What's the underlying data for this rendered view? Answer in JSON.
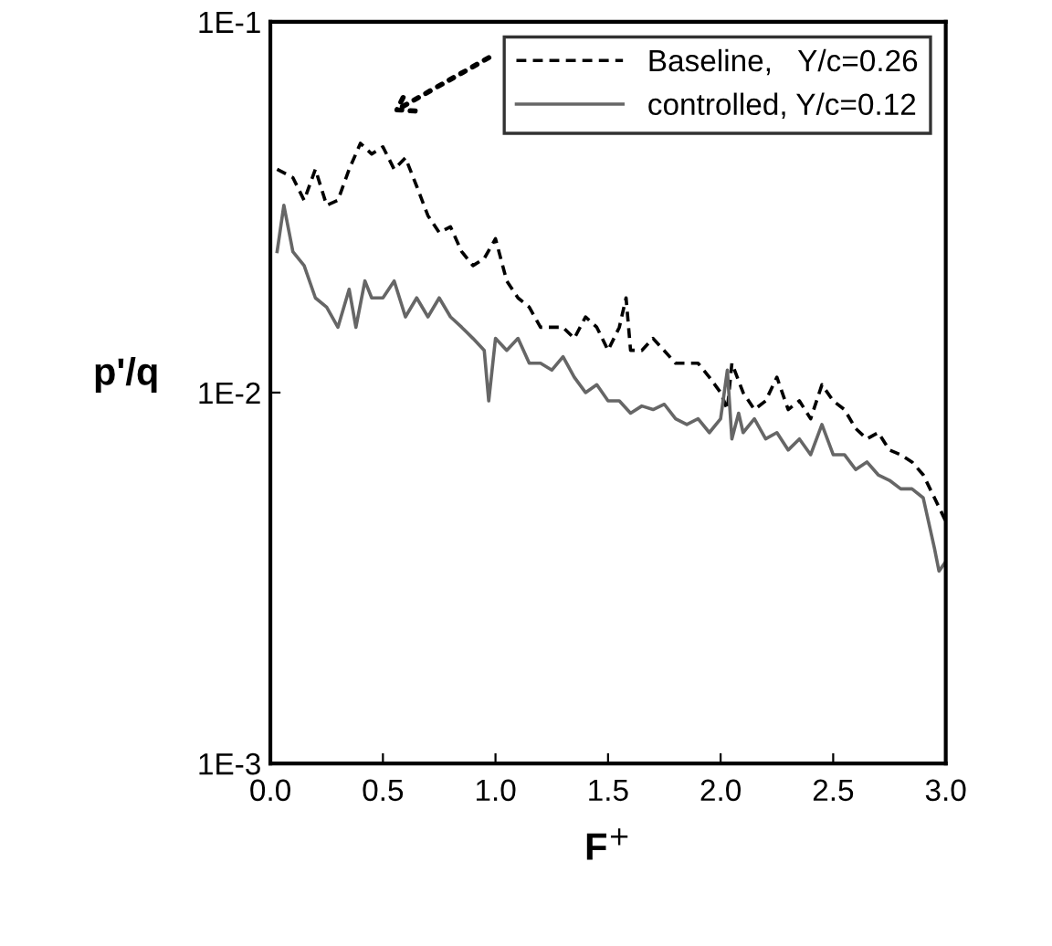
{
  "chart_data": {
    "type": "line",
    "xlabel": "F$^{+}$",
    "ylabel": "p'/q",
    "xlim": [
      0,
      3
    ],
    "xticks": [
      {
        "value": 0,
        "label": "0.0"
      },
      {
        "value": 0.5,
        "label": "0.5"
      },
      {
        "value": 1,
        "label": "1.0"
      },
      {
        "value": 1.5,
        "label": "1.5"
      },
      {
        "value": 2,
        "label": "2.0"
      },
      {
        "value": 2.5,
        "label": "2.5"
      },
      {
        "value": 3,
        "label": "3.0"
      }
    ],
    "ylim": [
      0.001,
      0.1
    ],
    "yticks": [
      {
        "value": 0.001,
        "label": "1E-3"
      },
      {
        "value": 0.01,
        "label": "1E-2"
      },
      {
        "value": 0.1,
        "label": "1E-1"
      }
    ],
    "log": "y",
    "grid": false,
    "legend": "top right",
    "marker": "none",
    "series": [
      {
        "name": "Baseline,   Y/c=0.26",
        "color": "#000000",
        "line_style": "dashed",
        "x": [
          0.03,
          0.1,
          0.15,
          0.2,
          0.25,
          0.3,
          0.35,
          0.4,
          0.45,
          0.5,
          0.55,
          0.6,
          0.65,
          0.7,
          0.75,
          0.8,
          0.85,
          0.9,
          0.95,
          1.0,
          1.05,
          1.1,
          1.15,
          1.2,
          1.3,
          1.35,
          1.4,
          1.45,
          1.5,
          1.55,
          1.58,
          1.6,
          1.65,
          1.7,
          1.8,
          1.9,
          1.95,
          2.0,
          2.03,
          2.05,
          2.1,
          2.15,
          2.2,
          2.25,
          2.3,
          2.35,
          2.4,
          2.45,
          2.5,
          2.55,
          2.6,
          2.65,
          2.7,
          2.75,
          2.8,
          2.85,
          2.9,
          2.95,
          3.0
        ],
        "values": [
          0.04,
          0.038,
          0.033,
          0.04,
          0.032,
          0.033,
          0.04,
          0.047,
          0.044,
          0.046,
          0.04,
          0.043,
          0.036,
          0.03,
          0.027,
          0.028,
          0.024,
          0.022,
          0.023,
          0.026,
          0.02,
          0.018,
          0.017,
          0.015,
          0.015,
          0.014,
          0.016,
          0.015,
          0.013,
          0.015,
          0.018,
          0.013,
          0.013,
          0.014,
          0.012,
          0.012,
          0.011,
          0.01,
          0.009,
          0.012,
          0.01,
          0.009,
          0.0095,
          0.011,
          0.009,
          0.0095,
          0.0085,
          0.0105,
          0.0095,
          0.009,
          0.008,
          0.0075,
          0.0078,
          0.007,
          0.0068,
          0.0065,
          0.006,
          0.0052,
          0.0045
        ]
      },
      {
        "name": "controlled, Y/c=0.12",
        "color": "#666666",
        "line_style": "solid",
        "x": [
          0.03,
          0.06,
          0.1,
          0.15,
          0.2,
          0.25,
          0.3,
          0.35,
          0.38,
          0.42,
          0.45,
          0.5,
          0.55,
          0.6,
          0.65,
          0.7,
          0.75,
          0.8,
          0.85,
          0.9,
          0.95,
          0.97,
          1.0,
          1.05,
          1.1,
          1.15,
          1.2,
          1.25,
          1.3,
          1.35,
          1.4,
          1.45,
          1.5,
          1.55,
          1.6,
          1.65,
          1.7,
          1.75,
          1.8,
          1.85,
          1.9,
          1.95,
          2.0,
          2.03,
          2.05,
          2.08,
          2.1,
          2.15,
          2.2,
          2.25,
          2.3,
          2.35,
          2.4,
          2.45,
          2.5,
          2.55,
          2.6,
          2.65,
          2.7,
          2.75,
          2.8,
          2.85,
          2.9,
          2.95,
          2.97,
          3.0
        ],
        "values": [
          0.024,
          0.032,
          0.024,
          0.022,
          0.018,
          0.017,
          0.015,
          0.019,
          0.015,
          0.02,
          0.018,
          0.018,
          0.02,
          0.016,
          0.018,
          0.016,
          0.018,
          0.016,
          0.015,
          0.014,
          0.013,
          0.0095,
          0.014,
          0.013,
          0.014,
          0.012,
          0.012,
          0.0115,
          0.0125,
          0.011,
          0.01,
          0.0105,
          0.0095,
          0.0095,
          0.0088,
          0.0092,
          0.009,
          0.0093,
          0.0085,
          0.0082,
          0.0085,
          0.0078,
          0.0085,
          0.0115,
          0.0075,
          0.0088,
          0.0078,
          0.0085,
          0.0075,
          0.0078,
          0.007,
          0.0075,
          0.0068,
          0.0082,
          0.0068,
          0.0068,
          0.0062,
          0.0065,
          0.006,
          0.0058,
          0.0055,
          0.0055,
          0.0052,
          0.0038,
          0.0033,
          0.0035
        ]
      }
    ]
  }
}
